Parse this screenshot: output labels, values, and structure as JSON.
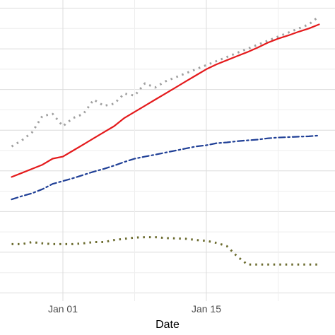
{
  "chart_data": {
    "type": "line",
    "title": "",
    "xlabel": "Date",
    "ylabel": "",
    "x_ticks": [
      "Jan 01",
      "Jan 15"
    ],
    "x": [
      "2019-12-27",
      "2019-12-28",
      "2019-12-29",
      "2019-12-30",
      "2019-12-31",
      "2020-01-01",
      "2020-01-02",
      "2020-01-03",
      "2020-01-04",
      "2020-01-05",
      "2020-01-06",
      "2020-01-07",
      "2020-01-08",
      "2020-01-09",
      "2020-01-10",
      "2020-01-11",
      "2020-01-12",
      "2020-01-13",
      "2020-01-14",
      "2020-01-15",
      "2020-01-16",
      "2020-01-17",
      "2020-01-18",
      "2020-01-19",
      "2020-01-20",
      "2020-01-21",
      "2020-01-22",
      "2020-01-23",
      "2020-01-24",
      "2020-01-25",
      "2020-01-26"
    ],
    "grid": true,
    "legend": "none",
    "series": [
      {
        "style": "dotted",
        "color": "#a0a0a0",
        "values": [
          5.6,
          5.75,
          5.95,
          6.35,
          6.4,
          6.1,
          6.3,
          6.4,
          6.75,
          6.6,
          6.65,
          6.9,
          6.85,
          7.15,
          7.05,
          7.2,
          7.3,
          7.4,
          7.5,
          7.6,
          7.7,
          7.8,
          7.9,
          8.0,
          8.1,
          8.2,
          8.3,
          8.4,
          8.5,
          8.6,
          8.8
        ]
      },
      {
        "style": "solid",
        "color": "#e41a1c",
        "values": [
          4.85,
          4.95,
          5.05,
          5.15,
          5.3,
          5.35,
          5.5,
          5.65,
          5.8,
          5.95,
          6.1,
          6.3,
          6.45,
          6.6,
          6.75,
          6.9,
          7.05,
          7.2,
          7.35,
          7.5,
          7.62,
          7.72,
          7.82,
          7.92,
          8.03,
          8.15,
          8.25,
          8.33,
          8.42,
          8.5,
          8.6
        ]
      },
      {
        "style": "dashdot",
        "color": "#1f3f96",
        "values": [
          4.3,
          4.38,
          4.45,
          4.55,
          4.68,
          4.75,
          4.82,
          4.9,
          4.98,
          5.05,
          5.13,
          5.22,
          5.3,
          5.35,
          5.4,
          5.45,
          5.5,
          5.55,
          5.6,
          5.63,
          5.68,
          5.7,
          5.73,
          5.75,
          5.77,
          5.8,
          5.82,
          5.83,
          5.84,
          5.85,
          5.87
        ]
      },
      {
        "style": "dotted",
        "color": "#6b6b2e",
        "values": [
          3.2,
          3.2,
          3.25,
          3.22,
          3.2,
          3.2,
          3.2,
          3.22,
          3.25,
          3.25,
          3.3,
          3.33,
          3.36,
          3.37,
          3.37,
          3.35,
          3.34,
          3.33,
          3.3,
          3.28,
          3.23,
          3.15,
          2.9,
          2.7,
          2.7,
          2.7,
          2.7,
          2.7,
          2.7,
          2.7,
          2.7
        ]
      }
    ],
    "ylim": [
      1.8,
      9.2
    ]
  }
}
